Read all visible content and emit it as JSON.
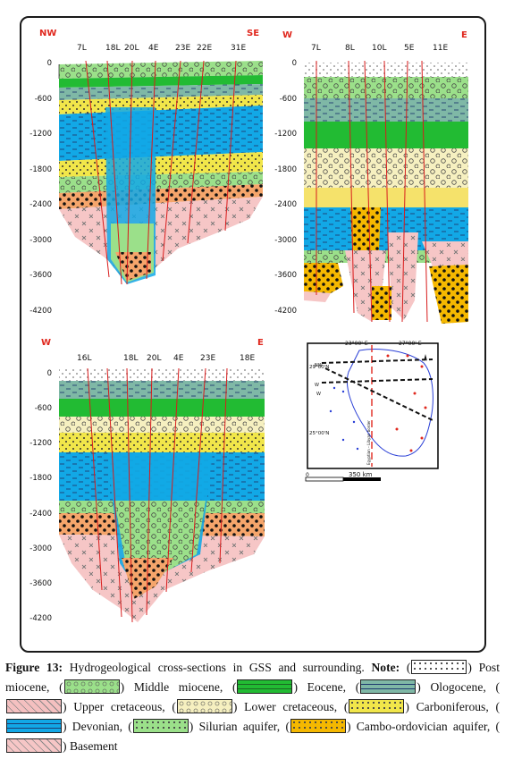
{
  "panels": {
    "nw_se": {
      "left_end": "NW",
      "right_end": "SE",
      "wells": [
        "7L",
        "18L",
        "20L",
        "4E",
        "23E",
        "22E",
        "31E"
      ],
      "depths": [
        "0",
        "-600",
        "-1200",
        "-1800",
        "-2400",
        "-3000",
        "-3600",
        "-4200"
      ]
    },
    "w_e_top": {
      "left_end": "W",
      "right_end": "E",
      "wells": [
        "7L",
        "8L",
        "10L",
        "5E",
        "11E"
      ],
      "depths": [
        "0",
        "-600",
        "-1200",
        "-1800",
        "-2400",
        "-3000",
        "-3600",
        "-4200"
      ]
    },
    "w_e_bottom": {
      "left_end": "W",
      "right_end": "E",
      "wells": [
        "16L",
        "18L",
        "20L",
        "4E",
        "23E",
        "18E"
      ],
      "depths": [
        "0",
        "-600",
        "-1200",
        "-1800",
        "-2400",
        "-3000",
        "-3600",
        "-4200"
      ]
    }
  },
  "map": {
    "lon_labels": [
      "23°00' E",
      "27°00' E"
    ],
    "lat_labels": [
      "29°00'N",
      "25°00'N"
    ],
    "line_labels": [
      "NW",
      "W",
      "W"
    ],
    "border_label": "Egyptian – Libyan border",
    "scale_start": "0",
    "scale_end": "350 km"
  },
  "caption": {
    "figure_label": "Figure 13:",
    "title": " Hydrogeological cross-sections in GSS and surrounding. ",
    "note_label": "Note:",
    "legend": [
      {
        "name": "Post miocene",
        "sep": ",",
        "color": "#ffffff",
        "pattern": "dots"
      },
      {
        "name": "Middle miocene",
        "sep": ",",
        "color": "#9be08a",
        "pattern": "circles"
      },
      {
        "name": "Eocene",
        "sep": ",",
        "color": "#22bb33",
        "pattern": "bricks"
      },
      {
        "name": "Ologocene",
        "sep": ",",
        "color": "#7fb8a6",
        "pattern": "dash"
      },
      {
        "name": "Upper cretaceous",
        "sep": ",",
        "color": "#f4c0c0",
        "pattern": "cross"
      },
      {
        "name": "Lower cretaceous",
        "sep": ",",
        "color": "#f6f0c0",
        "pattern": "circles"
      },
      {
        "name": "Carboniferous",
        "sep": ",",
        "color": "#f1e64a",
        "pattern": "dots"
      },
      {
        "name": "Devonian",
        "sep": ",",
        "color": "#12a8e6",
        "pattern": "dash"
      },
      {
        "name": "Silurian aquifer",
        "sep": ",",
        "color": "#9be08a",
        "pattern": "dots"
      },
      {
        "name": "Cambo-ordovician aquifer",
        "sep": ",",
        "color": "#f5b800",
        "pattern": "dots"
      },
      {
        "name": "Basement",
        "sep": "",
        "color": "#f6c6c6",
        "pattern": "cross"
      }
    ]
  }
}
